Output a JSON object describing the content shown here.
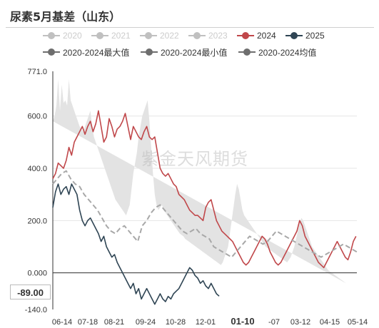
{
  "title": "尿素5月基差（山东）",
  "watermark": "紫金天风期货",
  "current_value_label": "-89.00",
  "legend": [
    {
      "label": "2020",
      "color": "#c0c0c0",
      "active": false
    },
    {
      "label": "2021",
      "color": "#c0c0c0",
      "active": false
    },
    {
      "label": "2022",
      "color": "#c0c0c0",
      "active": false
    },
    {
      "label": "2023",
      "color": "#c0c0c0",
      "active": false
    },
    {
      "label": "2024",
      "color": "#c0474a",
      "active": true
    },
    {
      "label": "2025",
      "color": "#2f4554",
      "active": true
    },
    {
      "label": "2020-2024最大值",
      "color": "#6e6e6e",
      "active": true
    },
    {
      "label": "2020-2024最小值",
      "color": "#6e6e6e",
      "active": true
    },
    {
      "label": "2020-2024均值",
      "color": "#6e6e6e",
      "active": true
    }
  ],
  "chart_data": {
    "type": "line",
    "title": "尿素5月基差（山东）",
    "ylim": [
      -140,
      771
    ],
    "y_ticks": [
      "771.0",
      "600.0",
      "400.0",
      "200.0",
      "0.000",
      "-140.0"
    ],
    "x_ticks": [
      "06-14",
      "07-18",
      "08-21",
      "09-24",
      "10-28",
      "12-01",
      "01-10",
      "-07",
      "03-12",
      "04-15",
      "05-14"
    ],
    "highlight_x_tick": "01-10",
    "grid": true,
    "band": {
      "x": [
        0,
        2,
        4,
        6,
        8,
        10,
        12,
        14,
        16,
        18,
        20,
        22,
        24,
        26,
        28,
        30,
        32,
        34,
        36,
        38,
        40,
        42,
        44,
        46,
        48,
        50,
        52,
        54,
        56,
        58,
        60,
        62,
        64,
        66,
        68,
        70,
        72,
        74,
        76,
        78,
        80,
        82,
        84,
        86,
        88,
        90,
        92,
        94,
        96,
        98,
        100,
        102,
        104,
        106,
        108,
        110,
        112,
        114,
        116,
        118,
        120,
        122,
        124,
        126,
        128,
        130,
        132,
        134,
        136,
        138,
        140,
        142,
        144,
        146,
        148,
        150,
        152,
        154,
        156,
        158,
        160,
        162,
        164,
        166,
        168,
        170,
        172,
        174,
        176,
        178,
        180,
        182,
        184,
        186,
        188,
        190,
        192,
        194,
        196,
        198,
        200,
        202,
        204,
        206,
        208,
        210,
        212,
        214,
        216,
        218,
        220,
        222,
        224,
        226,
        228,
        230,
        232,
        234,
        236,
        238,
        240,
        242,
        244,
        246,
        248,
        250,
        252,
        254,
        256,
        258,
        260,
        262,
        264,
        266,
        268,
        270,
        272,
        274,
        276,
        278,
        280,
        282,
        284,
        286,
        288,
        290,
        292,
        294,
        296,
        298,
        300,
        302,
        304,
        306,
        308,
        310,
        312,
        314,
        316,
        318,
        320,
        322,
        324,
        326,
        328,
        330,
        332,
        334,
        336,
        338,
        340
      ],
      "max": [
        580,
        600,
        640,
        740,
        620,
        720,
        650,
        660,
        640,
        740,
        660,
        640,
        620,
        600,
        580,
        560,
        550,
        540,
        560,
        580,
        600,
        620,
        560,
        520,
        500,
        480,
        460,
        440,
        420,
        400,
        380,
        360,
        340,
        320,
        300,
        280,
        270,
        260,
        250,
        240,
        230,
        220,
        240,
        260,
        320,
        380,
        420,
        460,
        520,
        560,
        600,
        620,
        640,
        660,
        580,
        480,
        380,
        300,
        260,
        240,
        250,
        260,
        240,
        230,
        220,
        210,
        200,
        190,
        180,
        170,
        160,
        150,
        145,
        140,
        130,
        125,
        120,
        115,
        110,
        105,
        100,
        95,
        90,
        85,
        80,
        75,
        70,
        65,
        60,
        55,
        50,
        45,
        40,
        35,
        30,
        40,
        60,
        80,
        100,
        150,
        200,
        250,
        300,
        340,
        320,
        280,
        240,
        220,
        210,
        200,
        190,
        180,
        170,
        160,
        150,
        140,
        130,
        120,
        110,
        100,
        95,
        90,
        85,
        80,
        75,
        70,
        65,
        60,
        55,
        50,
        45,
        40,
        50,
        60,
        80,
        100,
        130,
        160,
        190,
        210,
        200,
        180,
        160,
        140,
        120,
        100,
        90,
        80,
        70,
        60,
        50,
        40,
        30,
        20,
        10,
        5,
        0,
        -5,
        -10,
        -15,
        -20,
        -25,
        -30,
        -35,
        -40
      ],
      "min": [
        80,
        80,
        80,
        80,
        80,
        80,
        80,
        80,
        80,
        80,
        80,
        80,
        80,
        80,
        80,
        80,
        80,
        80,
        80,
        80,
        80,
        80,
        80,
        80,
        80,
        80,
        80,
        80,
        80,
        80,
        80,
        80,
        80,
        80,
        80,
        80,
        80,
        80,
        80,
        80,
        80,
        80,
        80,
        80,
        80,
        80,
        80,
        80,
        80,
        80,
        80,
        80,
        80,
        80,
        80,
        80,
        80,
        80,
        80,
        80,
        75,
        70,
        65,
        60,
        55,
        50,
        45,
        40,
        35,
        30,
        25,
        20,
        15,
        10,
        5,
        0,
        -5,
        -10,
        -15,
        -20,
        -25,
        -30,
        -35,
        -40,
        -45,
        -50,
        -55,
        -60,
        -65,
        -70,
        -75,
        -80,
        -85,
        -90,
        -95,
        -100,
        -105,
        -110,
        -115,
        -120,
        -125,
        -130,
        -125,
        -120,
        -115,
        -110,
        -105,
        -100,
        -95,
        -90,
        -85,
        -80,
        -75,
        -70,
        -65,
        -60,
        -55,
        -50,
        -45,
        -40,
        -35,
        -30,
        -25,
        -20,
        -15,
        -10,
        -5,
        0,
        5,
        10,
        15,
        20,
        25,
        30,
        35,
        40,
        45,
        50,
        50,
        50,
        50,
        50,
        50,
        50,
        50,
        50,
        50,
        50,
        50,
        50,
        50,
        50,
        50,
        50,
        50,
        50,
        50,
        50,
        50,
        50,
        50,
        50,
        50,
        50,
        50,
        50,
        50,
        50,
        50
      ]
    },
    "series": [
      {
        "name": "2024",
        "color": "#c0474a",
        "dash": false,
        "x": [
          0,
          3,
          6,
          9,
          12,
          15,
          18,
          21,
          24,
          27,
          30,
          33,
          36,
          39,
          42,
          45,
          48,
          51,
          54,
          57,
          60,
          63,
          66,
          69,
          72,
          75,
          78,
          81,
          84,
          87,
          90,
          93,
          96,
          99,
          102,
          105,
          108,
          111,
          114,
          117,
          120,
          123,
          126,
          129,
          132,
          135,
          138,
          141,
          144,
          147,
          150,
          153,
          156,
          159,
          162,
          165,
          168,
          171,
          174,
          177,
          180,
          183,
          186,
          189,
          192,
          195,
          198,
          201,
          204,
          207,
          210,
          213,
          216,
          219,
          222,
          225,
          228,
          231,
          234,
          237,
          240,
          243,
          246,
          249,
          252,
          255,
          258,
          261,
          264,
          267,
          270,
          273,
          276,
          279,
          282,
          285,
          288,
          291,
          294,
          297,
          300,
          303,
          306,
          309,
          312,
          315,
          318,
          321,
          324,
          327,
          330,
          333,
          336,
          339
        ],
        "y": [
          360,
          380,
          420,
          410,
          400,
          430,
          480,
          450,
          500,
          520,
          540,
          560,
          530,
          560,
          580,
          540,
          570,
          620,
          560,
          500,
          520,
          590,
          560,
          520,
          550,
          560,
          580,
          610,
          560,
          510,
          560,
          540,
          520,
          510,
          540,
          560,
          520,
          510,
          520,
          460,
          400,
          380,
          370,
          380,
          360,
          340,
          330,
          300,
          290,
          280,
          260,
          240,
          230,
          220,
          220,
          210,
          200,
          250,
          270,
          280,
          240,
          200,
          180,
          160,
          150,
          140,
          130,
          120,
          100,
          80,
          60,
          40,
          30,
          40,
          60,
          80,
          100,
          120,
          140,
          130,
          110,
          80,
          60,
          40,
          30,
          40,
          60,
          80,
          100,
          120,
          140,
          160,
          200,
          180,
          140,
          120,
          100,
          80,
          60,
          40,
          30,
          20,
          40,
          60,
          80,
          100,
          120,
          100,
          80,
          60,
          50,
          80,
          120,
          140
        ]
      },
      {
        "name": "2025",
        "color": "#2f4554",
        "dash": false,
        "x": [
          0,
          3,
          6,
          9,
          12,
          15,
          18,
          21,
          24,
          27,
          30,
          33,
          36,
          39,
          42,
          45,
          48,
          51,
          54,
          57,
          60,
          63,
          66,
          69,
          72,
          75,
          78,
          81,
          84,
          87,
          90,
          93,
          96,
          99,
          102,
          105,
          108,
          111,
          114,
          117,
          120,
          123,
          126,
          129,
          132,
          135,
          138,
          141,
          144,
          147,
          150,
          153,
          156,
          159,
          162,
          165,
          168,
          171,
          174,
          177,
          180,
          183,
          186
        ],
        "y": [
          250,
          310,
          340,
          300,
          320,
          330,
          300,
          340,
          320,
          300,
          240,
          200,
          180,
          200,
          210,
          190,
          170,
          150,
          120,
          140,
          100,
          80,
          60,
          70,
          40,
          20,
          0,
          -20,
          -40,
          -60,
          -40,
          -80,
          -60,
          -100,
          -80,
          -60,
          -80,
          -100,
          -120,
          -100,
          -80,
          -100,
          -110,
          -90,
          -100,
          -80,
          -70,
          -60,
          -40,
          -20,
          0,
          20,
          10,
          -10,
          -20,
          -40,
          -30,
          -50,
          -60,
          -40,
          -60,
          -80,
          -89
        ]
      },
      {
        "name": "2020-2024均值",
        "color": "#a8a8a8",
        "dash": true,
        "x": [
          0,
          5,
          10,
          15,
          20,
          25,
          30,
          35,
          40,
          45,
          50,
          55,
          60,
          65,
          70,
          75,
          80,
          85,
          90,
          95,
          100,
          105,
          110,
          115,
          120,
          125,
          130,
          135,
          140,
          145,
          150,
          155,
          160,
          165,
          170,
          175,
          180,
          185,
          190,
          195,
          200,
          205,
          210,
          215,
          220,
          225,
          230,
          235,
          240,
          245,
          250,
          255,
          260,
          265,
          270,
          275,
          280,
          285,
          290,
          295,
          300,
          305,
          310,
          315,
          320,
          325,
          330,
          335,
          340
        ],
        "y": [
          340,
          360,
          380,
          390,
          360,
          340,
          330,
          300,
          280,
          260,
          240,
          210,
          180,
          160,
          150,
          170,
          180,
          160,
          140,
          120,
          180,
          200,
          230,
          250,
          260,
          240,
          220,
          200,
          180,
          160,
          150,
          160,
          170,
          150,
          140,
          130,
          100,
          90,
          80,
          70,
          60,
          80,
          100,
          120,
          140,
          130,
          120,
          110,
          120,
          140,
          160,
          150,
          140,
          130,
          120,
          110,
          100,
          90,
          80,
          70,
          60,
          70,
          80,
          90,
          100,
          110,
          100,
          90,
          80
        ]
      }
    ]
  }
}
